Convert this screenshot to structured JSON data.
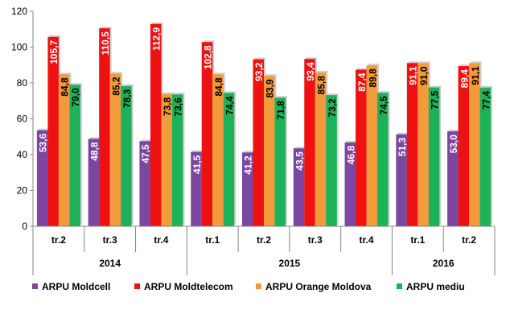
{
  "chart_data": {
    "type": "bar",
    "categories": [
      "tr.2",
      "tr.3",
      "tr.4",
      "tr.1",
      "tr.2",
      "tr.3",
      "tr.4",
      "tr.1",
      "tr.2"
    ],
    "groups": [
      {
        "label": "2014",
        "start": 0,
        "end": 2
      },
      {
        "label": "2015",
        "start": 3,
        "end": 6
      },
      {
        "label": "2016",
        "start": 7,
        "end": 8
      }
    ],
    "series": [
      {
        "name": "ARPU Moldcell",
        "color": "#7B47A1",
        "values": [
          53.6,
          48.8,
          47.5,
          41.5,
          41.2,
          43.5,
          46.8,
          51.3,
          53.0
        ],
        "labels": [
          "53,6",
          "48,8",
          "47,5",
          "41,5",
          "41,2",
          "43,5",
          "46,8",
          "51,3",
          "53,0"
        ],
        "label_color": "#ffffff"
      },
      {
        "name": "ARPU Moldtelecom",
        "color": "#EE1111",
        "values": [
          105.7,
          110.5,
          112.9,
          102.8,
          93.2,
          93.4,
          87.4,
          91.1,
          89.4
        ],
        "labels": [
          "105,7",
          "110,5",
          "112,9",
          "102,8",
          "93,2",
          "93,4",
          "87,4",
          "91,1",
          "89,4"
        ],
        "label_color": "#ffffff"
      },
      {
        "name": "ARPU Orange Moldova",
        "color": "#F39A3A",
        "values": [
          84.8,
          85.2,
          73.8,
          84.8,
          83.9,
          85.8,
          89.8,
          91.0,
          91.1
        ],
        "labels": [
          "84,8",
          "85,2",
          "73,8",
          "84,8",
          "83,9",
          "85,8",
          "89,8",
          "91,0",
          "91,1"
        ],
        "label_color": "#000000"
      },
      {
        "name": "ARPU mediu",
        "color": "#1DB259",
        "values": [
          79.0,
          78.3,
          73.6,
          74.4,
          71.8,
          73.2,
          74.5,
          77.5,
          77.4
        ],
        "labels": [
          "79,0",
          "78,3",
          "73,6",
          "74,4",
          "71,8",
          "73,2",
          "74,5",
          "77,5",
          "77,4"
        ],
        "label_color": "#000000"
      }
    ],
    "ylim": [
      0,
      120
    ],
    "yticks": [
      "0",
      "20",
      "40",
      "60",
      "80",
      "100",
      "120"
    ],
    "ytick_values": [
      0,
      20,
      40,
      60,
      80,
      100,
      120
    ],
    "grid": false,
    "legend_position": "bottom",
    "title": "",
    "xlabel": "",
    "ylabel": ""
  }
}
